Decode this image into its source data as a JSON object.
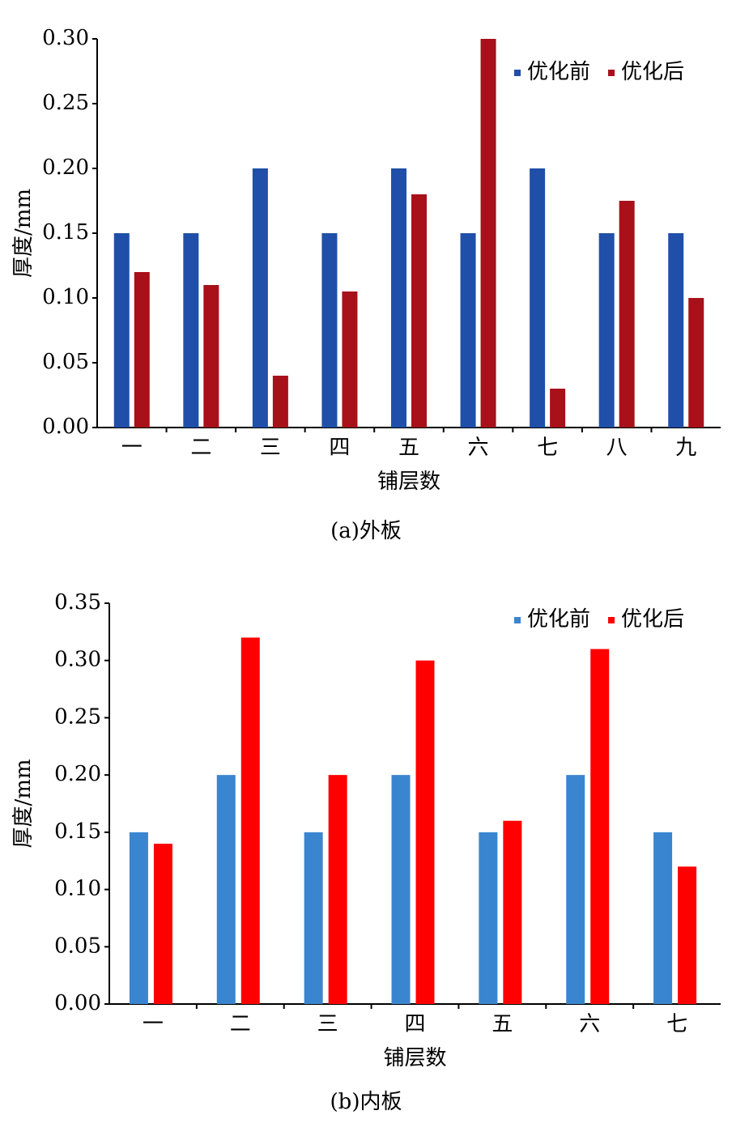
{
  "chart_data": [
    {
      "type": "bar",
      "caption": "(a)外板",
      "xlabel": "铺层数",
      "ylabel": "厚度/mm",
      "categories": [
        "一",
        "二",
        "三",
        "四",
        "五",
        "六",
        "七",
        "八",
        "九"
      ],
      "series": [
        {
          "name": "优化前",
          "color": "#1f4fa8",
          "values": [
            0.15,
            0.15,
            0.2,
            0.15,
            0.2,
            0.15,
            0.2,
            0.15,
            0.15
          ]
        },
        {
          "name": "优化后",
          "color": "#a8101a",
          "values": [
            0.12,
            0.11,
            0.04,
            0.105,
            0.18,
            0.3,
            0.03,
            0.175,
            0.1
          ]
        }
      ],
      "ylim": [
        0,
        0.3
      ],
      "yticks": [
        {
          "value": 0,
          "label": "0.00"
        },
        {
          "value": 0.05,
          "label": "0.05"
        },
        {
          "value": 0.1,
          "label": "0.10"
        },
        {
          "value": 0.15,
          "label": "0.15"
        },
        {
          "value": 0.2,
          "label": "0.20"
        },
        {
          "value": 0.25,
          "label": "0.25"
        },
        {
          "value": 0.3,
          "label": "0.30"
        }
      ],
      "legend": "upper right"
    },
    {
      "type": "bar",
      "caption": "(b)内板",
      "xlabel": "铺层数",
      "ylabel": "厚度/mm",
      "categories": [
        "一",
        "二",
        "三",
        "四",
        "五",
        "六",
        "七"
      ],
      "series": [
        {
          "name": "优化前",
          "color": "#3a85d0",
          "values": [
            0.15,
            0.2,
            0.15,
            0.2,
            0.15,
            0.2,
            0.15
          ]
        },
        {
          "name": "优化后",
          "color": "#ff0000",
          "values": [
            0.14,
            0.32,
            0.2,
            0.3,
            0.16,
            0.31,
            0.12
          ]
        }
      ],
      "ylim": [
        0,
        0.35
      ],
      "yticks": [
        {
          "value": 0,
          "label": "0.00"
        },
        {
          "value": 0.05,
          "label": "0.05"
        },
        {
          "value": 0.1,
          "label": "0.10"
        },
        {
          "value": 0.15,
          "label": "0.15"
        },
        {
          "value": 0.2,
          "label": "0.20"
        },
        {
          "value": 0.25,
          "label": "0.25"
        },
        {
          "value": 0.3,
          "label": "0.30"
        },
        {
          "value": 0.35,
          "label": "0.35"
        }
      ],
      "legend": "upper right"
    }
  ]
}
